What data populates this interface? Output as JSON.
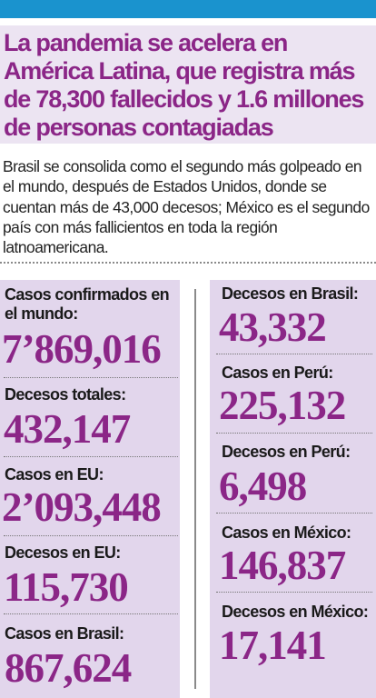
{
  "headline": "La pandemia se acelera en América Latina, que registra más de 78,300 fallecidos y 1.6 millones de personas contagiadas",
  "summary": "Brasil se consolida como el segundo más golpeado en el mundo, después de Estados Unidos, donde se cuentan más de 43,000 decesos; México es el segundo país con más fallicientos en toda la región latnoamericana.",
  "stats_left": [
    {
      "label": "Casos confirmados en el mundo:",
      "value": "7’869,016"
    },
    {
      "label": "Decesos totales:",
      "value": "432,147"
    },
    {
      "label": "Casos en EU:",
      "value": "2’093,448"
    },
    {
      "label": "Decesos en EU:",
      "value": "115,730"
    },
    {
      "label": "Casos en Brasil:",
      "value": "867,624"
    }
  ],
  "stats_right": [
    {
      "label": "Decesos en Brasil:",
      "value": "43,332"
    },
    {
      "label": "Casos en Perú:",
      "value": "225,132"
    },
    {
      "label": "Decesos en Perú:",
      "value": "6,498"
    },
    {
      "label": "Casos en México:",
      "value": "146,837"
    },
    {
      "label": "Decesos en México:",
      "value": "17,141"
    }
  ],
  "colors": {
    "accent_bar": "#1a93ce",
    "header_bg": "#ece4f2",
    "panel_bg": "#e2d6ec",
    "headline": "#8b2687",
    "number": "#8b2687"
  }
}
